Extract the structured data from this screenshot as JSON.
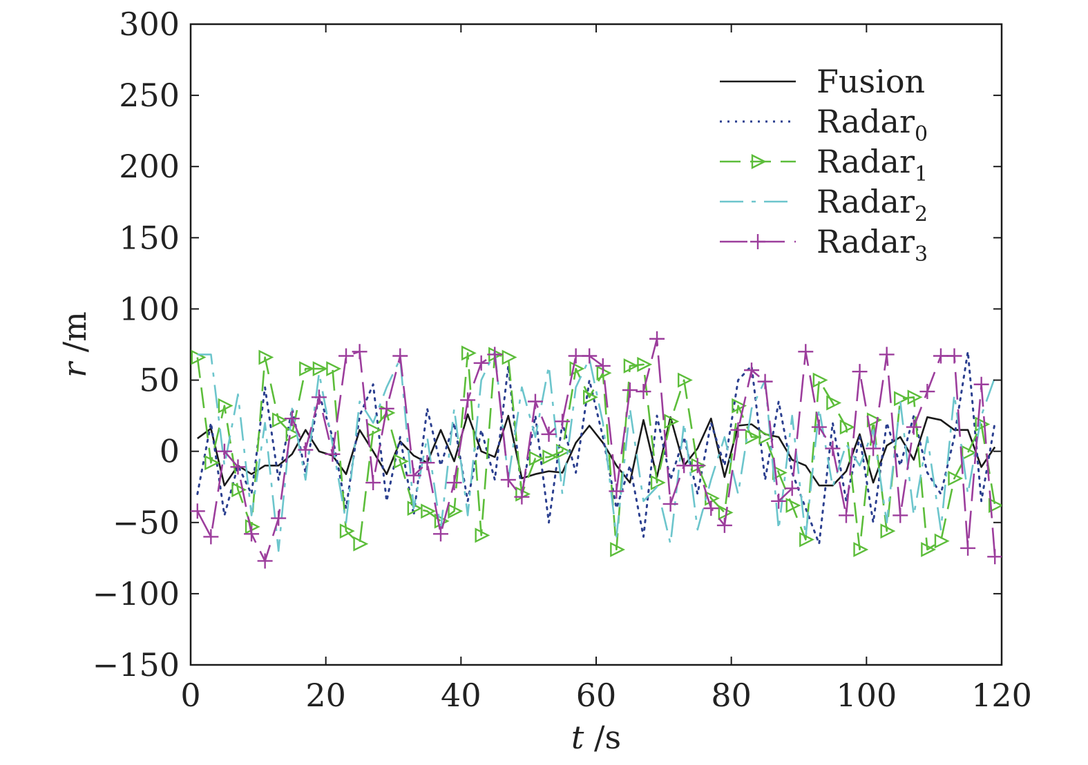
{
  "chart_data": {
    "type": "line",
    "xlabel": {
      "var": "t",
      "unit": " /s"
    },
    "ylabel": {
      "var": "r",
      "unit": " /m"
    },
    "xlim": [
      0,
      120
    ],
    "ylim": [
      -150,
      300
    ],
    "xticks": [
      0,
      20,
      40,
      60,
      80,
      100,
      120
    ],
    "yticks": [
      -150,
      -100,
      -50,
      0,
      50,
      100,
      150,
      200,
      250,
      300
    ],
    "legend_position": "top-right",
    "grid": false,
    "series": [
      {
        "name": "Fusion",
        "sub": "",
        "color": "#1a1a1a",
        "style": "solid",
        "marker": "none",
        "x": [
          1,
          3,
          5,
          7,
          9,
          11,
          13,
          15,
          17,
          19,
          21,
          23,
          25,
          27,
          29,
          31,
          33,
          35,
          37,
          39,
          41,
          43,
          45,
          47,
          49,
          51,
          53,
          55,
          57,
          59,
          61,
          63,
          65,
          67,
          69,
          71,
          73,
          75,
          77,
          79,
          81,
          83,
          85,
          87,
          89,
          91,
          93,
          95,
          97,
          99,
          101,
          103,
          105,
          107,
          109,
          111,
          113,
          115,
          117,
          119
        ],
        "y": [
          9,
          16,
          -24,
          -10,
          -16,
          -10,
          -10,
          -2,
          15,
          0,
          -3,
          -16,
          15,
          0,
          -16,
          7,
          -3,
          -8,
          15,
          -7,
          26,
          0,
          -4,
          25,
          -19,
          -16,
          -14,
          -15,
          6,
          18,
          6,
          -10,
          -22,
          22,
          -18,
          24,
          -10,
          2,
          23,
          -18,
          18,
          19,
          12,
          10,
          -6,
          -10,
          -24,
          -24,
          -14,
          12,
          -22,
          4,
          10,
          -6,
          24,
          22,
          15,
          15,
          -11,
          3
        ]
      },
      {
        "name": "Radar",
        "sub": "0",
        "color": "#2b3f8f",
        "style": "dotted",
        "marker": "none",
        "x": [
          1,
          3,
          5,
          7,
          9,
          11,
          13,
          15,
          17,
          19,
          21,
          23,
          25,
          27,
          29,
          31,
          33,
          35,
          37,
          39,
          41,
          43,
          45,
          47,
          49,
          51,
          53,
          55,
          57,
          59,
          61,
          63,
          65,
          67,
          69,
          71,
          73,
          75,
          77,
          79,
          81,
          83,
          85,
          87,
          89,
          91,
          93,
          95,
          97,
          99,
          101,
          103,
          105,
          107,
          109,
          111,
          113,
          115,
          117,
          119
        ],
        "y": [
          -30,
          20,
          -45,
          -10,
          -30,
          45,
          -20,
          30,
          -15,
          40,
          10,
          -40,
          25,
          47,
          -35,
          10,
          -45,
          30,
          -10,
          20,
          -35,
          15,
          -20,
          60,
          -30,
          25,
          -50,
          20,
          -15,
          50,
          10,
          -40,
          -10,
          -60,
          25,
          -20,
          10,
          -30,
          20,
          -10,
          50,
          60,
          -20,
          35,
          -15,
          -40,
          -65,
          20,
          -35,
          10,
          -50,
          20,
          -10,
          25,
          -15,
          -30,
          10,
          70,
          -35,
          20
        ]
      },
      {
        "name": "Radar",
        "sub": "1",
        "color": "#5cbd3a",
        "style": "dashed",
        "marker": "triangle",
        "x": [
          1,
          3,
          5,
          7,
          9,
          11,
          13,
          15,
          17,
          19,
          21,
          23,
          25,
          27,
          29,
          31,
          33,
          35,
          37,
          39,
          41,
          43,
          45,
          47,
          49,
          51,
          53,
          55,
          57,
          59,
          61,
          63,
          65,
          67,
          69,
          71,
          73,
          75,
          77,
          79,
          81,
          83,
          85,
          87,
          89,
          91,
          93,
          95,
          97,
          99,
          101,
          103,
          105,
          107,
          109,
          111,
          113,
          115,
          117,
          119
        ],
        "y": [
          66,
          -8,
          32,
          -27,
          -53,
          66,
          22,
          12,
          58,
          58,
          58,
          -56,
          -65,
          15,
          27,
          -7,
          -40,
          -42,
          -49,
          -42,
          69,
          -59,
          68,
          66,
          -30,
          -5,
          -4,
          0,
          58,
          38,
          55,
          -69,
          60,
          61,
          -22,
          21,
          50,
          -10,
          -33,
          -43,
          32,
          10,
          10,
          -15,
          -38,
          -62,
          50,
          34,
          17,
          -69,
          22,
          -56,
          37,
          38,
          -69,
          -63,
          -19,
          -1,
          19,
          -38
        ]
      },
      {
        "name": "Radar",
        "sub": "2",
        "color": "#6cc5cc",
        "style": "dashdot",
        "marker": "none",
        "x": [
          1,
          3,
          5,
          7,
          9,
          11,
          13,
          15,
          17,
          19,
          21,
          23,
          25,
          27,
          29,
          31,
          33,
          35,
          37,
          39,
          41,
          43,
          45,
          47,
          49,
          51,
          53,
          55,
          57,
          59,
          61,
          63,
          65,
          67,
          69,
          71,
          73,
          75,
          77,
          79,
          81,
          83,
          85,
          87,
          89,
          91,
          93,
          95,
          97,
          99,
          101,
          103,
          105,
          107,
          109,
          111,
          113,
          115,
          117,
          119
        ],
        "y": [
          68,
          68,
          -10,
          40,
          -45,
          20,
          -70,
          30,
          -20,
          55,
          5,
          -50,
          35,
          20,
          45,
          65,
          -40,
          10,
          -55,
          30,
          -45,
          50,
          70,
          -20,
          45,
          10,
          60,
          -30,
          45,
          65,
          20,
          -60,
          30,
          -35,
          -25,
          -65,
          20,
          -55,
          -20,
          10,
          -30,
          30,
          50,
          -55,
          25,
          -60,
          30,
          -25,
          5,
          -10,
          15,
          -50,
          35,
          -45,
          10,
          -55,
          40,
          -30,
          25,
          52
        ]
      },
      {
        "name": "Radar",
        "sub": "3",
        "color": "#9c3d9c",
        "style": "longdash",
        "marker": "plus",
        "x": [
          1,
          3,
          5,
          7,
          9,
          11,
          13,
          15,
          17,
          19,
          21,
          23,
          25,
          27,
          29,
          31,
          33,
          35,
          37,
          39,
          41,
          43,
          45,
          47,
          49,
          51,
          53,
          55,
          57,
          59,
          61,
          63,
          65,
          67,
          69,
          71,
          73,
          75,
          77,
          79,
          81,
          83,
          85,
          87,
          89,
          91,
          93,
          95,
          97,
          99,
          101,
          103,
          105,
          107,
          109,
          111,
          113,
          115,
          117,
          119
        ],
        "y": [
          -42,
          -60,
          0,
          -11,
          -58,
          -77,
          -47,
          23,
          1,
          38,
          -2,
          67,
          70,
          -22,
          30,
          67,
          -17,
          -8,
          -58,
          -22,
          36,
          62,
          68,
          -20,
          -32,
          35,
          12,
          21,
          67,
          67,
          60,
          -28,
          43,
          42,
          79,
          -37,
          -10,
          -10,
          -40,
          -52,
          15,
          57,
          49,
          -35,
          -26,
          70,
          17,
          2,
          -45,
          56,
          2,
          68,
          -45,
          17,
          42,
          67,
          67,
          -68,
          47,
          -74
        ]
      }
    ]
  }
}
